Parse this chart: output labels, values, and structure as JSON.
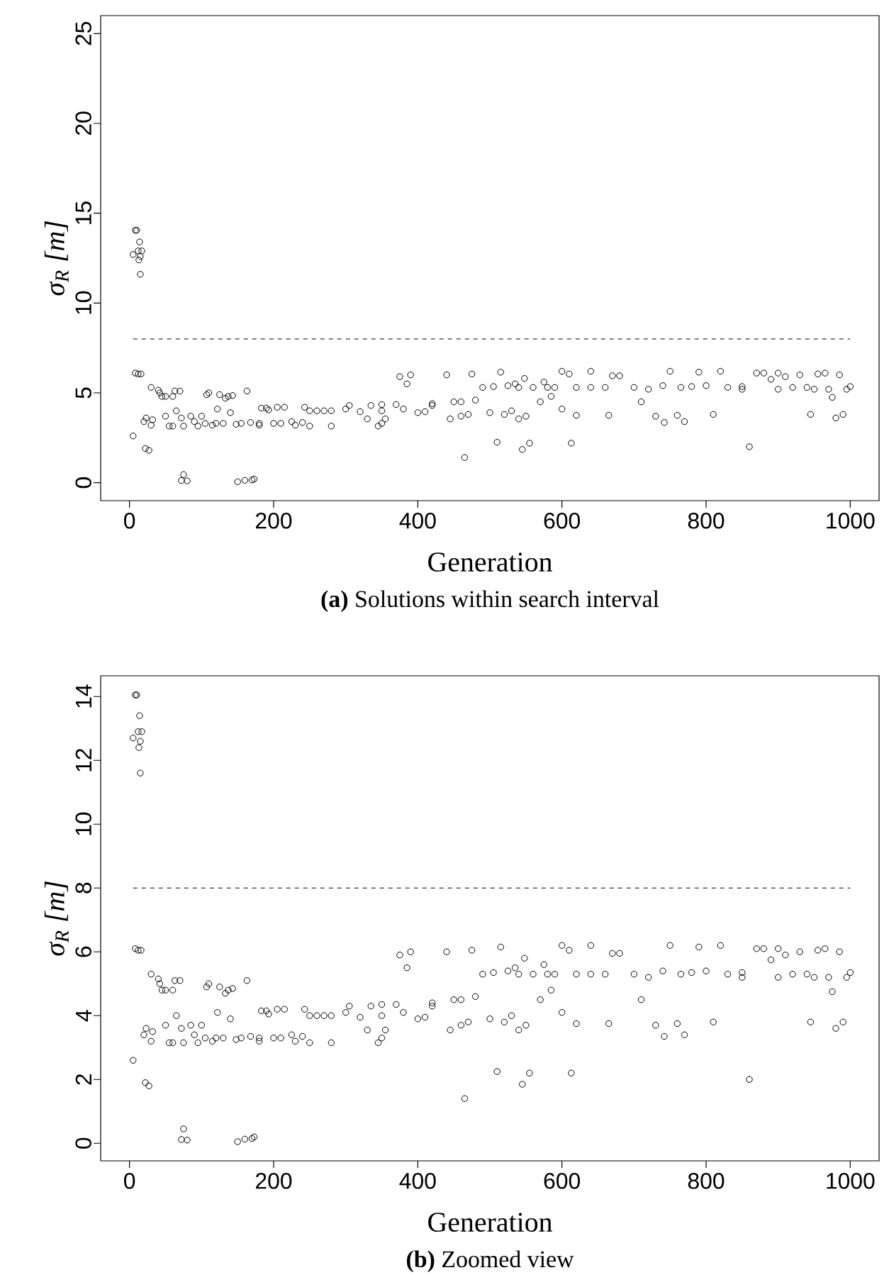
{
  "chart_data": [
    {
      "type": "scatter",
      "xlabel": "Generation",
      "ylabel": "σ$_{R}$ [m]",
      "annotations": [
        "**(a)** Solutions within search interval"
      ],
      "color": "#000000",
      "marker": "circle",
      "xlim": [
        -40,
        1040
      ],
      "ylim": [
        -1,
        26
      ],
      "xticks": [
        0,
        200,
        400,
        600,
        800,
        1000
      ],
      "yticks": [
        0,
        5,
        10,
        15,
        20,
        25
      ],
      "ref_lines": [
        {
          "axis": "y",
          "value": 8,
          "line_style": "dashed",
          "color": "#000000"
        }
      ],
      "x": [
        5,
        8,
        10,
        12,
        13,
        14,
        15,
        17,
        15,
        5,
        8,
        12,
        16,
        20,
        23,
        22,
        27,
        30,
        32,
        30,
        40,
        42,
        45,
        50,
        55,
        50,
        60,
        60,
        63,
        65,
        70,
        72,
        75,
        75,
        72,
        80,
        85,
        90,
        95,
        100,
        105,
        107,
        110,
        115,
        120,
        122,
        125,
        130,
        133,
        137,
        140,
        143,
        148,
        150,
        155,
        160,
        163,
        168,
        170,
        173,
        180,
        180,
        183,
        190,
        193,
        200,
        205,
        210,
        215,
        225,
        230,
        240,
        243,
        250,
        250,
        260,
        270,
        280,
        280,
        300,
        305,
        320,
        330,
        335,
        345,
        350,
        355,
        350,
        350,
        370,
        375,
        380,
        385,
        390,
        400,
        410,
        420,
        420,
        440,
        445,
        450,
        460,
        460,
        465,
        470,
        475,
        480,
        490,
        500,
        505,
        510,
        515,
        520,
        525,
        530,
        535,
        540,
        540,
        545,
        548,
        550,
        555,
        560,
        570,
        575,
        580,
        585,
        590,
        600,
        600,
        610,
        613,
        620,
        620,
        640,
        640,
        660,
        665,
        670,
        680,
        700,
        710,
        720,
        730,
        740,
        742,
        750,
        760,
        765,
        770,
        780,
        790,
        800,
        810,
        820,
        830,
        850,
        850,
        860,
        870,
        880,
        890,
        900,
        900,
        910,
        920,
        930,
        940,
        945,
        950,
        955,
        965,
        970,
        975,
        980,
        985,
        990,
        995,
        1000
      ],
      "values": [
        12.7,
        14.05,
        14.05,
        12.9,
        12.4,
        13.4,
        12.6,
        12.9,
        11.6,
        2.6,
        6.1,
        6.05,
        6.05,
        3.4,
        3.6,
        1.9,
        1.8,
        3.2,
        3.5,
        5.3,
        5.15,
        5.0,
        4.8,
        3.7,
        3.15,
        4.8,
        4.8,
        3.15,
        5.1,
        4.0,
        5.1,
        3.6,
        3.15,
        0.45,
        0.12,
        0.1,
        3.7,
        3.4,
        3.15,
        3.7,
        3.3,
        4.9,
        5.0,
        3.2,
        3.3,
        4.1,
        4.9,
        3.3,
        4.7,
        4.8,
        3.9,
        4.85,
        3.25,
        0.05,
        3.3,
        0.13,
        5.1,
        3.35,
        0.15,
        0.2,
        3.2,
        3.3,
        4.15,
        4.15,
        4.05,
        3.3,
        4.2,
        3.3,
        4.2,
        3.4,
        3.2,
        3.35,
        4.2,
        3.15,
        4.0,
        4.0,
        4.0,
        3.15,
        4.0,
        4.1,
        4.3,
        3.95,
        3.55,
        4.3,
        3.15,
        3.3,
        3.55,
        4.35,
        4.0,
        4.35,
        5.9,
        4.1,
        5.5,
        6.0,
        3.9,
        3.95,
        4.4,
        4.3,
        6.0,
        3.55,
        4.5,
        3.7,
        4.5,
        1.4,
        3.8,
        6.05,
        4.6,
        5.3,
        3.9,
        5.35,
        2.25,
        6.15,
        3.8,
        5.4,
        4.0,
        5.5,
        3.55,
        5.3,
        1.85,
        5.8,
        3.7,
        2.2,
        5.3,
        4.5,
        5.6,
        5.3,
        4.8,
        5.3,
        6.2,
        4.1,
        6.05,
        2.2,
        3.75,
        5.3,
        6.2,
        5.3,
        5.3,
        3.75,
        5.95,
        5.95,
        5.3,
        4.5,
        5.2,
        3.7,
        5.4,
        3.35,
        6.2,
        3.75,
        5.3,
        3.4,
        5.35,
        6.15,
        5.4,
        3.8,
        6.2,
        5.3,
        5.2,
        5.35,
        2.0,
        6.1,
        6.1,
        5.75,
        6.1,
        5.2,
        5.9,
        5.3,
        6.0,
        5.3,
        3.8,
        5.2,
        6.05,
        6.1,
        5.2,
        4.75,
        3.6,
        6.0,
        3.8,
        5.2,
        5.35
      ]
    },
    {
      "type": "scatter",
      "xlabel": "Generation",
      "ylabel": "σ$_{R}$ [m]",
      "annotations": [
        "**(b)** Zoomed view"
      ],
      "color": "#000000",
      "marker": "circle",
      "xlim": [
        -40,
        1040
      ],
      "ylim": [
        -0.55,
        14.65
      ],
      "xticks": [
        0,
        200,
        400,
        600,
        800,
        1000
      ],
      "yticks": [
        0,
        2,
        4,
        6,
        8,
        10,
        12,
        14
      ],
      "ref_lines": [
        {
          "axis": "y",
          "value": 8,
          "line_style": "dashed",
          "color": "#000000"
        }
      ],
      "x": [
        5,
        8,
        10,
        12,
        13,
        14,
        15,
        17,
        15,
        5,
        8,
        12,
        16,
        20,
        23,
        22,
        27,
        30,
        32,
        30,
        40,
        42,
        45,
        50,
        55,
        50,
        60,
        60,
        63,
        65,
        70,
        72,
        75,
        75,
        72,
        80,
        85,
        90,
        95,
        100,
        105,
        107,
        110,
        115,
        120,
        122,
        125,
        130,
        133,
        137,
        140,
        143,
        148,
        150,
        155,
        160,
        163,
        168,
        170,
        173,
        180,
        180,
        183,
        190,
        193,
        200,
        205,
        210,
        215,
        225,
        230,
        240,
        243,
        250,
        250,
        260,
        270,
        280,
        280,
        300,
        305,
        320,
        330,
        335,
        345,
        350,
        355,
        350,
        350,
        370,
        375,
        380,
        385,
        390,
        400,
        410,
        420,
        420,
        440,
        445,
        450,
        460,
        460,
        465,
        470,
        475,
        480,
        490,
        500,
        505,
        510,
        515,
        520,
        525,
        530,
        535,
        540,
        540,
        545,
        548,
        550,
        555,
        560,
        570,
        575,
        580,
        585,
        590,
        600,
        600,
        610,
        613,
        620,
        620,
        640,
        640,
        660,
        665,
        670,
        680,
        700,
        710,
        720,
        730,
        740,
        742,
        750,
        760,
        765,
        770,
        780,
        790,
        800,
        810,
        820,
        830,
        850,
        850,
        860,
        870,
        880,
        890,
        900,
        900,
        910,
        920,
        930,
        940,
        945,
        950,
        955,
        965,
        970,
        975,
        980,
        985,
        990,
        995,
        1000
      ],
      "values": [
        12.7,
        14.05,
        14.05,
        12.9,
        12.4,
        13.4,
        12.6,
        12.9,
        11.6,
        2.6,
        6.1,
        6.05,
        6.05,
        3.4,
        3.6,
        1.9,
        1.8,
        3.2,
        3.5,
        5.3,
        5.15,
        5.0,
        4.8,
        3.7,
        3.15,
        4.8,
        4.8,
        3.15,
        5.1,
        4.0,
        5.1,
        3.6,
        3.15,
        0.45,
        0.12,
        0.1,
        3.7,
        3.4,
        3.15,
        3.7,
        3.3,
        4.9,
        5.0,
        3.2,
        3.3,
        4.1,
        4.9,
        3.3,
        4.7,
        4.8,
        3.9,
        4.85,
        3.25,
        0.05,
        3.3,
        0.13,
        5.1,
        3.35,
        0.15,
        0.2,
        3.2,
        3.3,
        4.15,
        4.15,
        4.05,
        3.3,
        4.2,
        3.3,
        4.2,
        3.4,
        3.2,
        3.35,
        4.2,
        3.15,
        4.0,
        4.0,
        4.0,
        3.15,
        4.0,
        4.1,
        4.3,
        3.95,
        3.55,
        4.3,
        3.15,
        3.3,
        3.55,
        4.35,
        4.0,
        4.35,
        5.9,
        4.1,
        5.5,
        6.0,
        3.9,
        3.95,
        4.4,
        4.3,
        6.0,
        3.55,
        4.5,
        3.7,
        4.5,
        1.4,
        3.8,
        6.05,
        4.6,
        5.3,
        3.9,
        5.35,
        2.25,
        6.15,
        3.8,
        5.4,
        4.0,
        5.5,
        3.55,
        5.3,
        1.85,
        5.8,
        3.7,
        2.2,
        5.3,
        4.5,
        5.6,
        5.3,
        4.8,
        5.3,
        6.2,
        4.1,
        6.05,
        2.2,
        3.75,
        5.3,
        6.2,
        5.3,
        5.3,
        3.75,
        5.95,
        5.95,
        5.3,
        4.5,
        5.2,
        3.7,
        5.4,
        3.35,
        6.2,
        3.75,
        5.3,
        3.4,
        5.35,
        6.15,
        5.4,
        3.8,
        6.2,
        5.3,
        5.2,
        5.35,
        2.0,
        6.1,
        6.1,
        5.75,
        6.1,
        5.2,
        5.9,
        5.3,
        6.0,
        5.3,
        3.8,
        5.2,
        6.05,
        6.1,
        5.2,
        4.75,
        3.6,
        6.0,
        3.8,
        5.2,
        5.35
      ]
    }
  ]
}
